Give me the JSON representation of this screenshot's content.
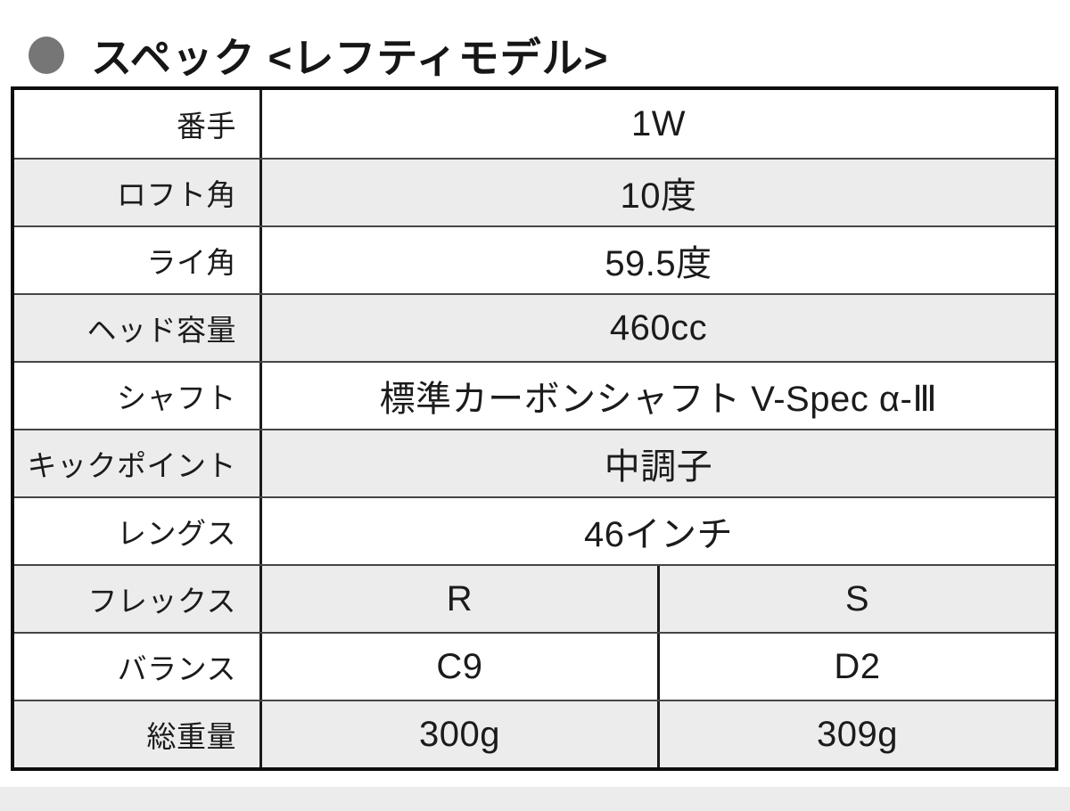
{
  "header": {
    "title": "スペック <レフティモデル>",
    "bullet_icon": "filled-gray-circle"
  },
  "colors": {
    "bg": "#ffffff",
    "text": "#1b1b1b",
    "shaded_row": "#ececec",
    "table_border": "#0d0d0d",
    "row_divider": "#454545",
    "col_divider": "#1a1a1a",
    "bullet": "#767676",
    "bottom_strip": "#ececec"
  },
  "table": {
    "rows": [
      {
        "label": "番手",
        "values": [
          "1W"
        ]
      },
      {
        "label": "ロフト角",
        "values": [
          "10度"
        ]
      },
      {
        "label": "ライ角",
        "values": [
          "59.5度"
        ]
      },
      {
        "label": "ヘッド容量",
        "values": [
          "460cc"
        ]
      },
      {
        "label": "シャフト",
        "values": [
          "標準カーボンシャフト V-Spec α-Ⅲ"
        ]
      },
      {
        "label": "キックポイント",
        "values": [
          "中調子"
        ]
      },
      {
        "label": "レングス",
        "values": [
          "46インチ"
        ]
      },
      {
        "label": "フレックス",
        "values": [
          "R",
          "S"
        ]
      },
      {
        "label": "バランス",
        "values": [
          "C9",
          "D2"
        ]
      },
      {
        "label": "総重量",
        "values": [
          "300g",
          "309g"
        ]
      }
    ]
  }
}
